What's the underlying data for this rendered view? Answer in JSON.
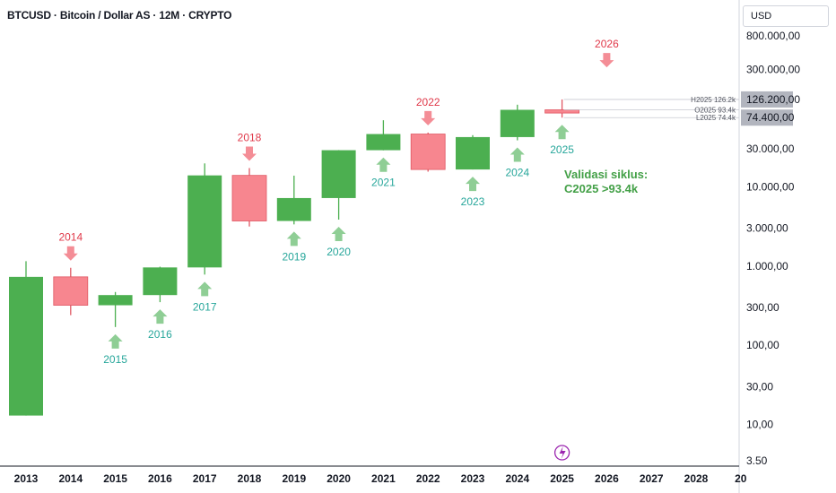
{
  "header": {
    "title": "BTCUSD · Bitcoin / Dollar AS · 12M · CRYPTO",
    "currency": "USD"
  },
  "chart_data": {
    "type": "candlestick",
    "title": "BTCUSD · Bitcoin / Dollar AS · 12M · CRYPTO",
    "yscale": "log",
    "ylim": [
      3.5,
      1200000
    ],
    "y_ticks": [
      {
        "value": 800000,
        "label": "800.000,00"
      },
      {
        "value": 300000,
        "label": "300.000,00"
      },
      {
        "value": 30000,
        "label": "30.000,00"
      },
      {
        "value": 10000,
        "label": "10.000,00"
      },
      {
        "value": 3000,
        "label": "3.000,00"
      },
      {
        "value": 1000,
        "label": "1.000,00"
      },
      {
        "value": 300,
        "label": "300,00"
      },
      {
        "value": 100,
        "label": "100,00"
      },
      {
        "value": 30,
        "label": "30,00"
      },
      {
        "value": 10,
        "label": "10,00"
      },
      {
        "value": 3.5,
        "label": "3.50"
      }
    ],
    "x_labels": [
      "2013",
      "2014",
      "2015",
      "2016",
      "2017",
      "2018",
      "2019",
      "2020",
      "2021",
      "2022",
      "2023",
      "2024",
      "2025",
      "2026",
      "2027",
      "2028",
      "20"
    ],
    "candles": [
      {
        "year": "2013",
        "open": 13,
        "high": 1150,
        "low": 13,
        "close": 730
      },
      {
        "year": "2014",
        "open": 730,
        "high": 950,
        "low": 240,
        "close": 320
      },
      {
        "year": "2015",
        "open": 320,
        "high": 470,
        "low": 170,
        "close": 430
      },
      {
        "year": "2016",
        "open": 430,
        "high": 980,
        "low": 350,
        "close": 960
      },
      {
        "year": "2017",
        "open": 960,
        "high": 19700,
        "low": 780,
        "close": 13900
      },
      {
        "year": "2018",
        "open": 13900,
        "high": 17200,
        "low": 3150,
        "close": 3700
      },
      {
        "year": "2019",
        "open": 3700,
        "high": 13800,
        "low": 3350,
        "close": 7200
      },
      {
        "year": "2020",
        "open": 7200,
        "high": 29000,
        "low": 3850,
        "close": 28900
      },
      {
        "year": "2021",
        "open": 28900,
        "high": 69000,
        "low": 28800,
        "close": 46200
      },
      {
        "year": "2022",
        "open": 46200,
        "high": 48200,
        "low": 15500,
        "close": 16500
      },
      {
        "year": "2023",
        "open": 16500,
        "high": 44700,
        "low": 16500,
        "close": 42300
      },
      {
        "year": "2024",
        "open": 42300,
        "high": 108300,
        "low": 38500,
        "close": 93400
      },
      {
        "year": "2025",
        "open": 93400,
        "high": 126200,
        "low": 74400,
        "close": 85000
      }
    ],
    "price_tags": [
      {
        "value": 126200,
        "label": "126.200,00"
      },
      {
        "value": 74400,
        "label": "74.400,00"
      }
    ],
    "ohlc_labels": [
      {
        "value": 126200,
        "label": "H2025 126.2k"
      },
      {
        "value": 93400,
        "label": "O2025 93.4k"
      },
      {
        "value": 74400,
        "label": "L2025 74.4k"
      }
    ],
    "top_markers": [
      {
        "year": "2014",
        "label": "2014",
        "anchor": 950
      },
      {
        "year": "2018",
        "label": "2018",
        "anchor": 17200
      },
      {
        "year": "2022",
        "label": "2022",
        "anchor": 48200
      },
      {
        "year": "2026",
        "label": "2026",
        "anchor": 260000
      }
    ],
    "bottom_markers": [
      {
        "year": "2015",
        "label": "2015",
        "anchor": 170
      },
      {
        "year": "2016",
        "label": "2016",
        "anchor": 350
      },
      {
        "year": "2017",
        "label": "2017",
        "anchor": 780
      },
      {
        "year": "2019",
        "label": "2019",
        "anchor": 3350
      },
      {
        "year": "2020",
        "label": "2020",
        "anchor": 3850
      },
      {
        "year": "2021",
        "label": "2021",
        "anchor": 28800
      },
      {
        "year": "2023",
        "label": "2023",
        "anchor": 16500
      },
      {
        "year": "2024",
        "label": "2024",
        "anchor": 38500
      },
      {
        "year": "2025",
        "label": "2025",
        "anchor": 74400
      }
    ],
    "annotation": {
      "line1": "Validasi siklus:",
      "line2": "C2025  >93.4k"
    }
  },
  "colors": {
    "up": "#4caf50",
    "down": "#f7868f",
    "down_stroke": "#e05763",
    "label_up": "#26a69a",
    "label_down": "#e0394a",
    "arrow_up": "#8fce95",
    "arrow_down": "#f48d96",
    "annotation": "#43a047",
    "axis_text": "#131722",
    "tag_bg": "#b2b5be",
    "grid": "#d1d4dc",
    "lightning": "#9c27b0"
  }
}
